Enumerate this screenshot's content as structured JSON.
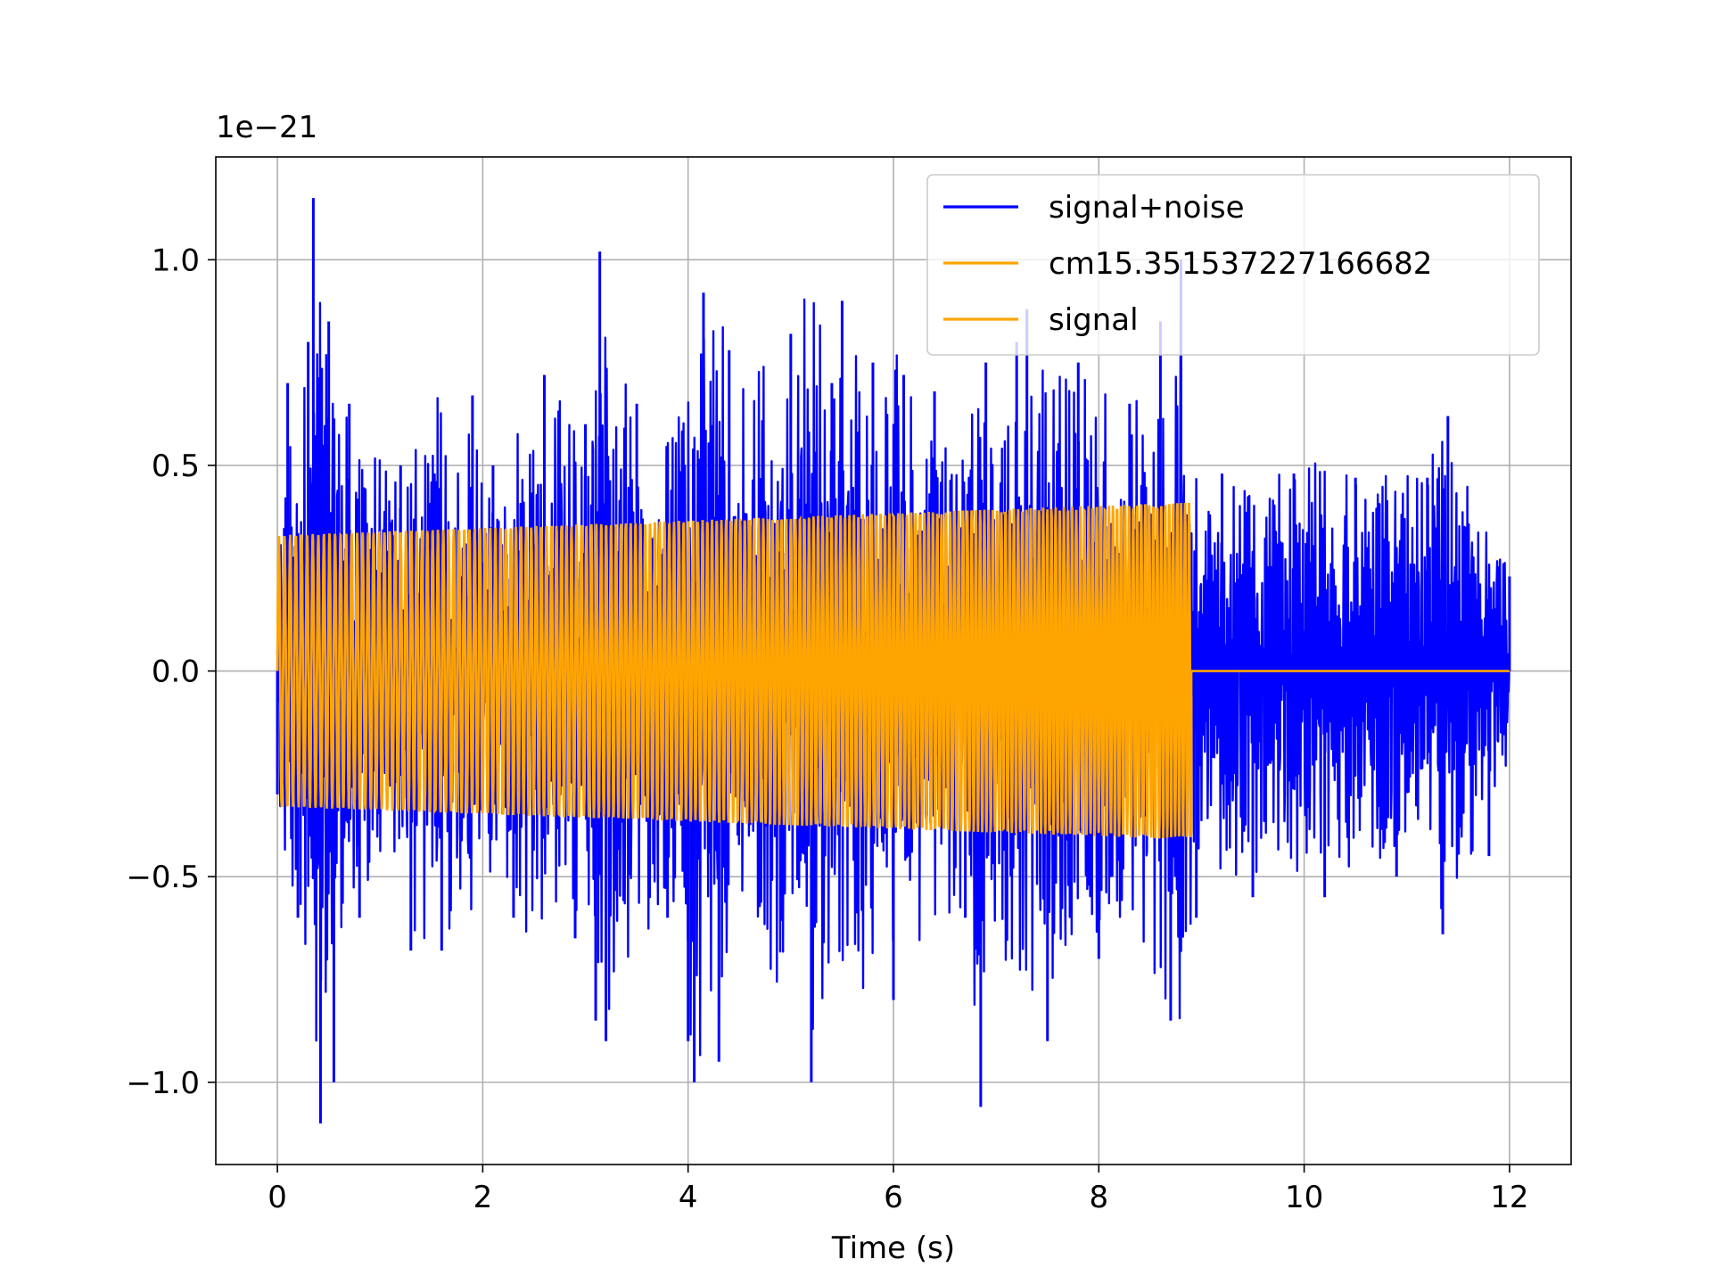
{
  "chart_data": {
    "type": "line",
    "title": "",
    "xlabel": "Time (s)",
    "ylabel": "",
    "offset_text": "1e−21",
    "scale_factor": 1e-21,
    "xlim": [
      -0.6,
      12.6
    ],
    "ylim": [
      -1.2,
      1.25
    ],
    "x_ticks": [
      0,
      2,
      4,
      6,
      8,
      10,
      12
    ],
    "x_tick_labels": [
      "0",
      "2",
      "4",
      "6",
      "8",
      "10",
      "12"
    ],
    "y_ticks": [
      -1.0,
      -0.5,
      0.0,
      0.5,
      1.0
    ],
    "y_tick_labels": [
      "−1.0",
      "−0.5",
      "0.0",
      "0.5",
      "1.0"
    ],
    "grid": true,
    "legend_position": "upper right",
    "series": [
      {
        "name": "signal+noise",
        "color": "#0000ff",
        "x_range": [
          0,
          12
        ],
        "description_values": {
          "envelope_peaks": [
            [
              0.0,
              -0.3
            ],
            [
              0.1,
              0.7
            ],
            [
              0.2,
              -0.6
            ],
            [
              0.3,
              0.8
            ],
            [
              0.35,
              1.15
            ],
            [
              0.42,
              -1.1
            ],
            [
              0.5,
              0.85
            ],
            [
              0.55,
              -1.0
            ],
            [
              0.7,
              0.65
            ],
            [
              0.8,
              -0.6
            ],
            [
              1.2,
              0.5
            ],
            [
              1.3,
              -0.68
            ],
            [
              1.6,
              -0.68
            ],
            [
              1.9,
              0.67
            ],
            [
              2.1,
              0.5
            ],
            [
              2.3,
              -0.6
            ],
            [
              2.6,
              0.72
            ],
            [
              2.9,
              -0.65
            ],
            [
              3.0,
              0.6
            ],
            [
              3.1,
              -0.85
            ],
            [
              3.14,
              1.02
            ],
            [
              3.2,
              -0.9
            ],
            [
              3.5,
              0.65
            ],
            [
              3.8,
              -0.6
            ],
            [
              4.0,
              -0.9
            ],
            [
              4.06,
              -1.0
            ],
            [
              4.15,
              0.92
            ],
            [
              4.3,
              -0.95
            ],
            [
              4.4,
              0.78
            ],
            [
              5.0,
              0.82
            ],
            [
              5.2,
              -1.0
            ],
            [
              5.4,
              0.7
            ],
            [
              5.5,
              0.9
            ],
            [
              5.8,
              0.75
            ],
            [
              6.0,
              -0.8
            ],
            [
              6.1,
              0.72
            ],
            [
              6.4,
              0.68
            ],
            [
              6.7,
              -0.6
            ],
            [
              6.85,
              -1.06
            ],
            [
              6.9,
              0.75
            ],
            [
              7.2,
              0.8
            ],
            [
              7.3,
              0.88
            ],
            [
              7.5,
              -0.9
            ],
            [
              7.8,
              0.75
            ],
            [
              8.0,
              -0.7
            ],
            [
              8.3,
              0.65
            ],
            [
              8.6,
              0.85
            ],
            [
              8.7,
              -0.85
            ],
            [
              8.8,
              1.0
            ],
            [
              8.95,
              -0.6
            ],
            [
              9.2,
              0.48
            ],
            [
              9.5,
              -0.55
            ],
            [
              9.9,
              0.48
            ],
            [
              10.2,
              -0.55
            ],
            [
              10.5,
              0.47
            ],
            [
              10.9,
              -0.5
            ],
            [
              11.2,
              0.47
            ],
            [
              11.35,
              -0.64
            ],
            [
              11.4,
              0.62
            ],
            [
              11.8,
              -0.45
            ],
            [
              12.0,
              0.23
            ]
          ]
        }
      },
      {
        "name": "cm15.351537227166682",
        "color": "#ffa500",
        "x_range": [
          0,
          8.9
        ],
        "amplitude_start": 0.33,
        "amplitude_end": 0.41,
        "after_end_value": 0.0
      },
      {
        "name": "signal",
        "color": "#ffa500",
        "x_range": [
          0,
          12
        ],
        "amplitude_start": 0.33,
        "amplitude_end": 0.41,
        "chirp_end": 8.9,
        "after_end_value": 0.0
      }
    ]
  }
}
